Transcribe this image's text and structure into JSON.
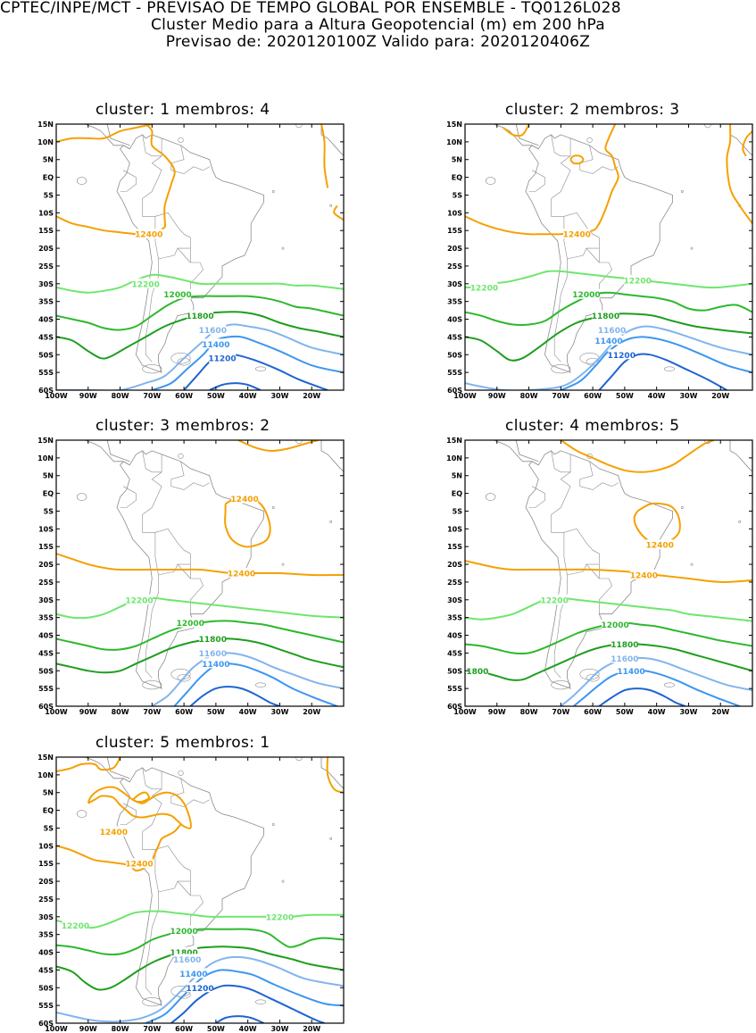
{
  "header": {
    "line1": "CPTEC/INPE/MCT - PREVISAO DE TEMPO GLOBAL POR ENSEMBLE - TQ0126L028",
    "line2": "Cluster Medio para a Altura Geopotencial (m) em 200 hPa",
    "line3": "Previsao de: 2020120100Z   Valido para: 2020120406Z"
  },
  "panels": [
    {
      "title": "cluster: 1   membros: 4"
    },
    {
      "title": "cluster: 2   membros: 3"
    },
    {
      "title": "cluster: 3   membros: 2"
    },
    {
      "title": "cluster: 4   membros: 5"
    },
    {
      "title": "cluster: 5   membros: 1"
    }
  ],
  "lat_labels": [
    "15N",
    "10N",
    "5N",
    "EQ",
    "5S",
    "10S",
    "15S",
    "20S",
    "25S",
    "30S",
    "35S",
    "40S",
    "45S",
    "50S",
    "55S",
    "60S"
  ],
  "lon_labels": [
    "100W",
    "90W",
    "80W",
    "70W",
    "60W",
    "50W",
    "40W",
    "30W",
    "20W"
  ],
  "contour_labels": {
    "c12400": "12400",
    "c12200": "12200",
    "c12000": "12000",
    "c11800": "11800",
    "c11600": "11600",
    "c11400": "11400",
    "c11200": "11200"
  },
  "colors": {
    "c12400": "#f5a000",
    "c12200": "#6ee66e",
    "c12000": "#2db82d",
    "c11800": "#1e9e1e",
    "c11600": "#82b4ee",
    "c11400": "#3c96f0",
    "c11200": "#1e64d2",
    "coast": "#8c8c8c"
  }
}
